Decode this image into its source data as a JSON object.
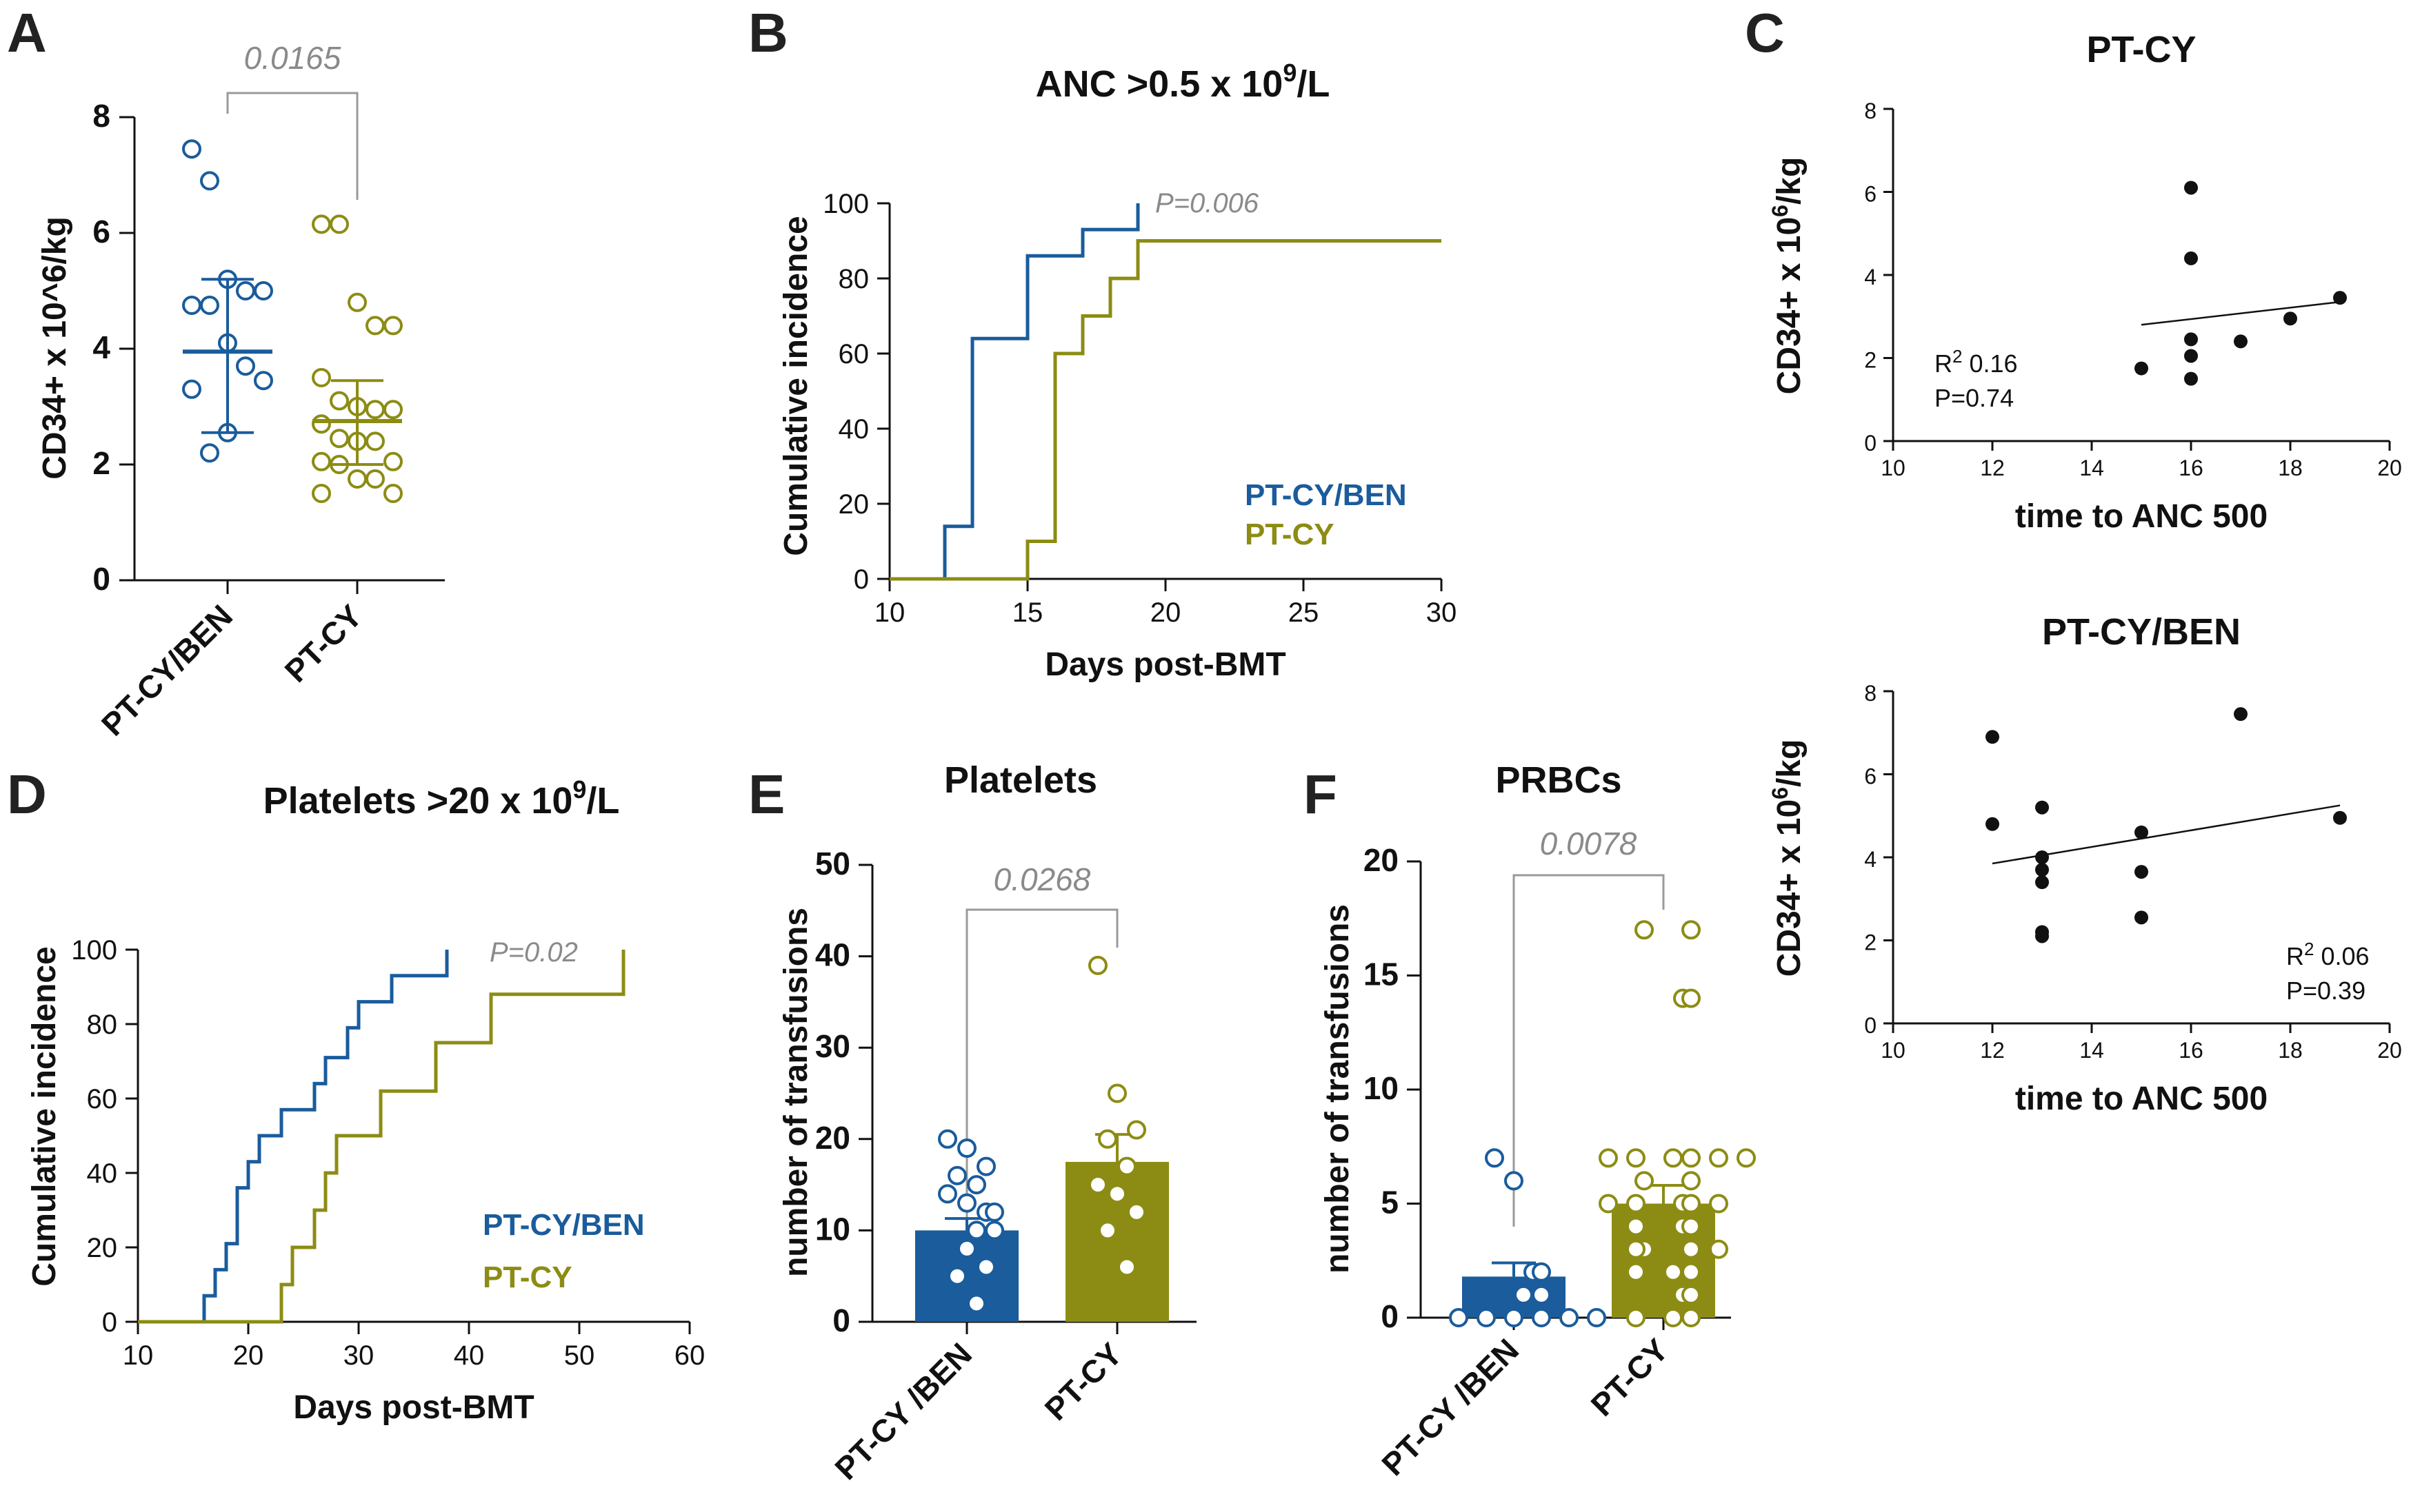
{
  "colors": {
    "blue": "#1a5c9c",
    "olive": "#8c8c14",
    "black": "#111111",
    "gray": "#8a8a8a"
  },
  "labels": {
    "A": "A",
    "B": "B",
    "C": "C",
    "D": "D",
    "E": "E",
    "F": "F",
    "sup_9": "9",
    "sup_2": "2",
    "sup_6": "6"
  },
  "chart_data": [
    {
      "id": "A",
      "type": "scatter",
      "title": "",
      "ylabel": "CD34+ x 10^6/kg",
      "ylim": [
        0,
        8
      ],
      "yticks": [
        0,
        2,
        4,
        6,
        8
      ],
      "ytick_labels": [
        "0",
        "2",
        "4",
        "6",
        "8"
      ],
      "categories": [
        "PT-CY/BEN",
        "PT-CY"
      ],
      "pvalue": "0.0165",
      "series": [
        {
          "name": "PT-CY/BEN",
          "color": "#1a5c9c",
          "values": [
            7.45,
            6.9,
            5.2,
            5.0,
            5.0,
            4.75,
            4.75,
            4.1,
            3.7,
            3.45,
            3.3,
            2.2,
            2.55
          ],
          "mean": 3.95,
          "sd_low": 2.55,
          "sd_high": 5.2
        },
        {
          "name": "PT-CY",
          "color": "#8c8c14",
          "values": [
            6.15,
            6.15,
            4.8,
            4.4,
            4.4,
            3.5,
            3.1,
            3.0,
            2.95,
            2.95,
            2.7,
            2.45,
            2.4,
            2.4,
            2.05,
            2.05,
            2.0,
            1.75,
            1.75,
            1.5,
            1.5
          ],
          "mean": 2.75,
          "sd_low": 2.0,
          "sd_high": 3.45
        }
      ]
    },
    {
      "id": "B",
      "type": "line",
      "title": "ANC >0.5 x 10",
      "title_tail": "/L",
      "xlabel": "Days post-BMT",
      "ylabel": "Cumulative incidence",
      "xlim": [
        10,
        30
      ],
      "ylim": [
        0,
        100
      ],
      "xticks": [
        10,
        15,
        20,
        25,
        30
      ],
      "xtick_labels": [
        "10",
        "15",
        "20",
        "25",
        "30"
      ],
      "yticks": [
        0,
        20,
        40,
        60,
        80,
        100
      ],
      "ytick_labels": [
        "0",
        "20",
        "40",
        "60",
        "80",
        "100"
      ],
      "pvalue": "P=0.006",
      "series": [
        {
          "name": "PT-CY/BEN",
          "color": "#1a5c9c",
          "x": [
            10,
            12,
            12,
            13,
            13,
            15,
            15,
            17,
            17,
            19,
            19
          ],
          "y": [
            0,
            0,
            14,
            14,
            64,
            64,
            86,
            86,
            93,
            93,
            100
          ]
        },
        {
          "name": "PT-CY",
          "color": "#8c8c14",
          "x": [
            10,
            15,
            15,
            16,
            16,
            17,
            17,
            18,
            18,
            19,
            19,
            30
          ],
          "y": [
            0,
            0,
            10,
            10,
            60,
            60,
            70,
            70,
            80,
            80,
            90,
            90
          ]
        }
      ]
    },
    {
      "id": "C1",
      "type": "scatter",
      "title": "PT-CY",
      "xlabel": "time to ANC 500",
      "ylabel": "CD34+ x 10",
      "ylabel_tail": "/kg",
      "xlim": [
        10,
        20
      ],
      "ylim": [
        0,
        8
      ],
      "xticks": [
        10,
        12,
        14,
        16,
        18,
        20
      ],
      "xtick_labels": [
        "10",
        "12",
        "14",
        "16",
        "18",
        "20"
      ],
      "yticks": [
        0,
        2,
        4,
        6,
        8
      ],
      "ytick_labels": [
        "0",
        "2",
        "4",
        "6",
        "8"
      ],
      "stat_r2": "R",
      "stat_r2_value": " 0.16",
      "stat_p": "P=0.74",
      "points": {
        "x": [
          15,
          16,
          16,
          16,
          16,
          16,
          17,
          18,
          19
        ],
        "y": [
          1.75,
          6.1,
          4.4,
          2.45,
          2.05,
          1.5,
          2.4,
          2.95,
          3.45
        ]
      },
      "fit": {
        "x": [
          15,
          19
        ],
        "y": [
          2.8,
          3.35
        ]
      }
    },
    {
      "id": "C2",
      "type": "scatter",
      "title": "PT-CY/BEN",
      "xlabel": "time to ANC 500",
      "ylabel": "CD34+ x 10",
      "ylabel_tail": "/kg",
      "xlim": [
        10,
        20
      ],
      "ylim": [
        0,
        8
      ],
      "xticks": [
        10,
        12,
        14,
        16,
        18,
        20
      ],
      "xtick_labels": [
        "10",
        "12",
        "14",
        "16",
        "18",
        "20"
      ],
      "yticks": [
        0,
        2,
        4,
        6,
        8
      ],
      "ytick_labels": [
        "0",
        "2",
        "4",
        "6",
        "8"
      ],
      "stat_r2": "R",
      "stat_r2_value": " 0.06",
      "stat_p": "P=0.39",
      "points": {
        "x": [
          12,
          12,
          13,
          13,
          13,
          13,
          13,
          13,
          15,
          15,
          15,
          17,
          19
        ],
        "y": [
          6.9,
          4.8,
          5.2,
          4.0,
          3.7,
          3.4,
          2.2,
          2.1,
          4.6,
          3.65,
          2.55,
          7.45,
          4.95
        ]
      },
      "fit": {
        "x": [
          12,
          19
        ],
        "y": [
          3.85,
          5.25
        ]
      }
    },
    {
      "id": "D",
      "type": "line",
      "title": "Platelets >20 x 10",
      "title_tail": "/L",
      "xlabel": "Days post-BMT",
      "ylabel": "Cumulative incidence",
      "xlim": [
        10,
        60
      ],
      "ylim": [
        0,
        100
      ],
      "xticks": [
        10,
        20,
        30,
        40,
        50,
        60
      ],
      "xtick_labels": [
        "10",
        "20",
        "30",
        "40",
        "50",
        "60"
      ],
      "yticks": [
        0,
        20,
        40,
        60,
        80,
        100
      ],
      "ytick_labels": [
        "0",
        "20",
        "40",
        "60",
        "80",
        "100"
      ],
      "pvalue": "P=0.02",
      "series": [
        {
          "name": "PT-CY/BEN",
          "color": "#1a5c9c",
          "x": [
            10,
            16,
            16,
            17,
            17,
            18,
            18,
            19,
            19,
            20,
            20,
            21,
            21,
            22,
            22,
            23,
            23,
            26,
            26,
            27,
            27,
            29,
            29,
            30,
            30,
            33,
            33,
            38,
            38
          ],
          "y": [
            0,
            0,
            7,
            7,
            14,
            14,
            21,
            21,
            36,
            36,
            43,
            43,
            50,
            50,
            50,
            50,
            57,
            57,
            64,
            64,
            71,
            71,
            79,
            79,
            86,
            86,
            93,
            93,
            100
          ]
        },
        {
          "name": "PT-CY",
          "color": "#8c8c14",
          "x": [
            10,
            23,
            23,
            24,
            24,
            26,
            26,
            27,
            27,
            28,
            28,
            32,
            32,
            37,
            37,
            42,
            42,
            54,
            54
          ],
          "y": [
            0,
            0,
            10,
            10,
            20,
            20,
            30,
            30,
            40,
            40,
            50,
            50,
            62,
            62,
            75,
            75,
            88,
            88,
            100
          ]
        }
      ]
    },
    {
      "id": "E",
      "type": "bar",
      "title": "Platelets",
      "ylabel": "number of transfusions",
      "ylim": [
        0,
        50
      ],
      "yticks": [
        0,
        10,
        20,
        30,
        40,
        50
      ],
      "ytick_labels": [
        "0",
        "10",
        "20",
        "30",
        "40",
        "50"
      ],
      "categories": [
        "PT-CY /BEN",
        "PT-CY"
      ],
      "values": [
        10,
        17.5
      ],
      "sem": [
        1.3,
        3.0
      ],
      "pvalue": "0.0268",
      "points": [
        [
          20,
          19,
          17,
          16,
          15,
          14,
          13,
          12,
          12,
          10,
          10,
          8,
          6,
          5,
          2
        ],
        [
          39,
          25,
          21,
          20,
          17,
          15,
          14,
          12,
          10,
          6
        ]
      ]
    },
    {
      "id": "F",
      "type": "bar",
      "title": "PRBCs",
      "ylabel": "number of transfusions",
      "ylim": [
        0,
        20
      ],
      "yticks": [
        0,
        5,
        10,
        15,
        20
      ],
      "ytick_labels": [
        "0",
        "5",
        "10",
        "15",
        "20"
      ],
      "categories": [
        "PT-CY /BEN",
        "PT-CY"
      ],
      "values": [
        1.8,
        5.0
      ],
      "sem": [
        0.6,
        0.8
      ],
      "pvalue": "0.0078",
      "points": [
        [
          7,
          6,
          2,
          2,
          1,
          1,
          0,
          0,
          0,
          0,
          0,
          0
        ],
        [
          17,
          17,
          14,
          14,
          7,
          7,
          7,
          7,
          7,
          7,
          6,
          6,
          5,
          5,
          5,
          5,
          5,
          4,
          4,
          4,
          3,
          3,
          3,
          3,
          2,
          2,
          2,
          1,
          1,
          0,
          0,
          0
        ]
      ]
    }
  ]
}
